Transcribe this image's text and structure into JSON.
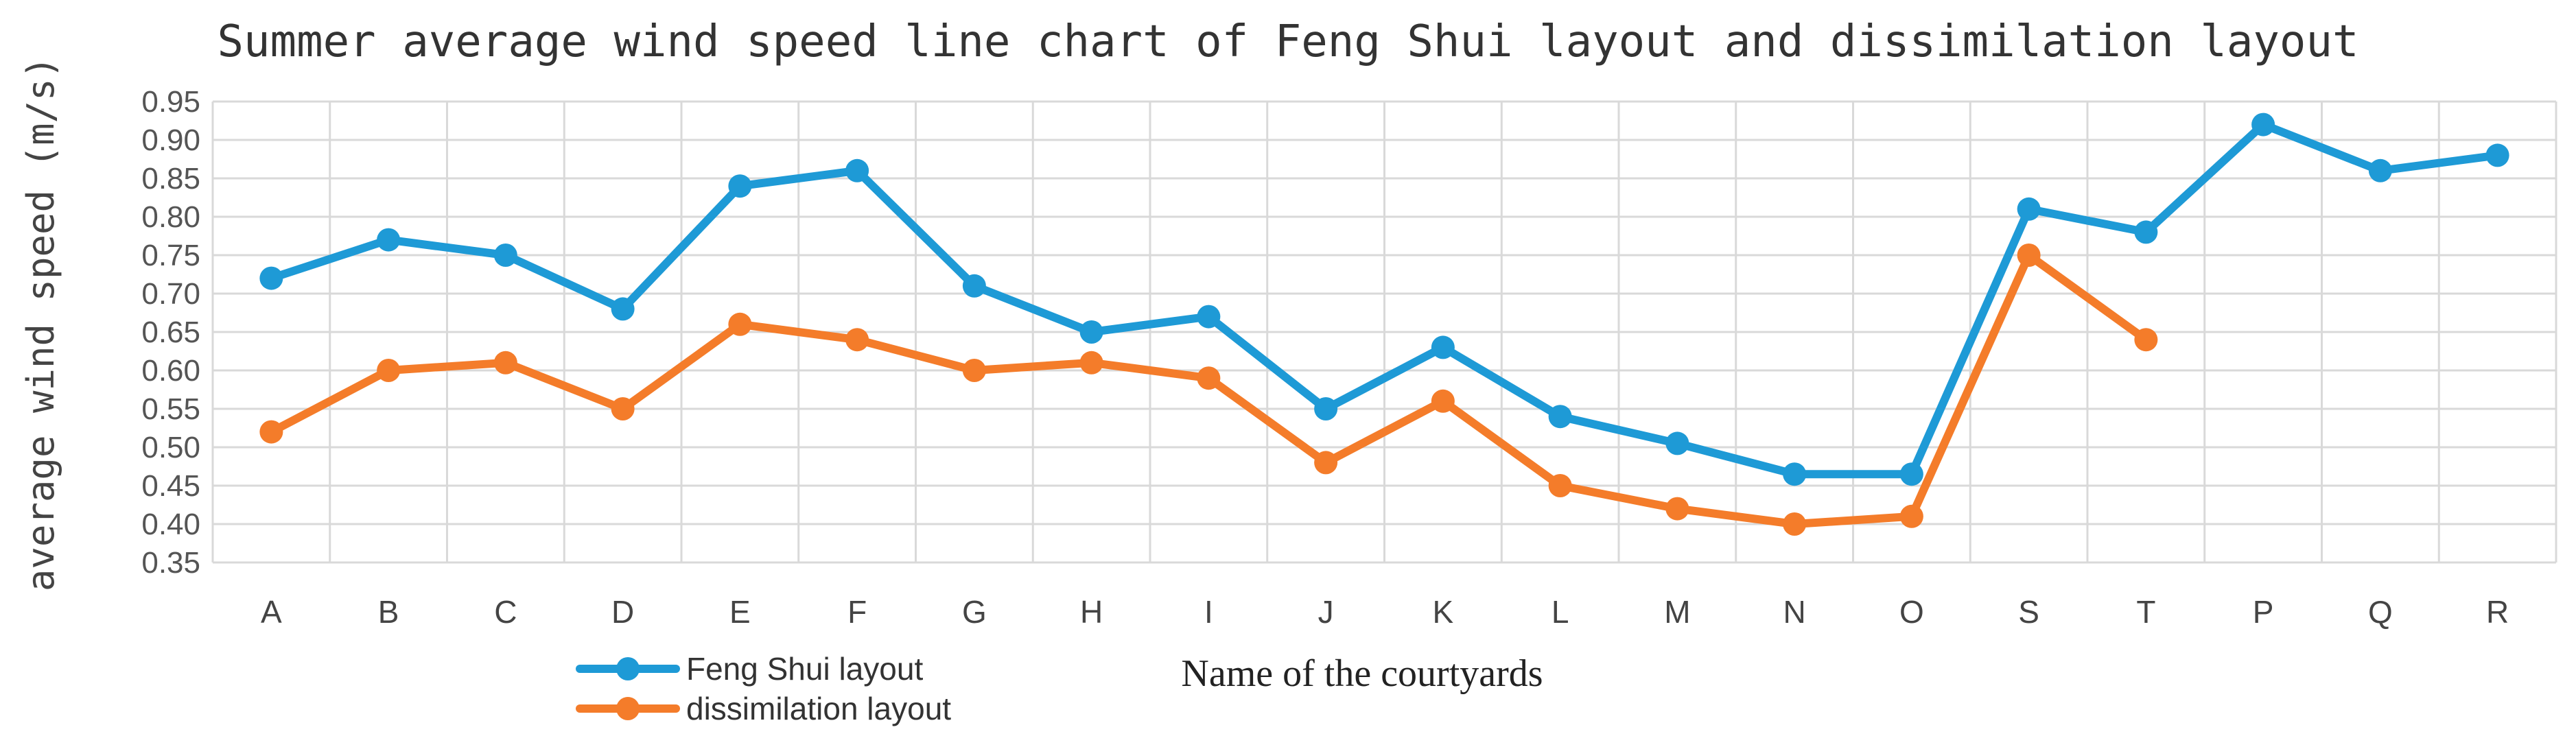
{
  "chart_data": {
    "type": "line",
    "title": "Summer average wind speed line chart of Feng Shui layout and dissimilation layout",
    "xlabel": "Name of the courtyards",
    "ylabel": "average wind speed (m/s)",
    "categories": [
      "A",
      "B",
      "C",
      "D",
      "E",
      "F",
      "G",
      "H",
      "I",
      "J",
      "K",
      "L",
      "M",
      "N",
      "O",
      "S",
      "T",
      "P",
      "Q",
      "R"
    ],
    "yticks": [
      "0.35",
      "0.40",
      "0.45",
      "0.50",
      "0.55",
      "0.60",
      "0.65",
      "0.70",
      "0.75",
      "0.80",
      "0.85",
      "0.90",
      "0.95"
    ],
    "ylim": [
      0.35,
      0.95
    ],
    "grid": true,
    "legend_position": "bottom-left",
    "series": [
      {
        "name": "Feng Shui layout",
        "color": "#1e9ad6",
        "values": [
          0.72,
          0.77,
          0.75,
          0.68,
          0.84,
          0.86,
          0.71,
          0.65,
          0.67,
          0.55,
          0.63,
          0.54,
          0.505,
          0.465,
          0.465,
          0.81,
          0.78,
          0.92,
          0.86,
          0.88
        ]
      },
      {
        "name": "dissimilation layout",
        "color": "#f47c2a",
        "values": [
          0.52,
          0.6,
          0.61,
          0.55,
          0.66,
          0.64,
          0.6,
          0.61,
          0.59,
          0.48,
          0.56,
          0.45,
          0.42,
          0.4,
          0.41,
          0.75,
          0.64,
          null,
          null,
          null
        ]
      }
    ]
  }
}
